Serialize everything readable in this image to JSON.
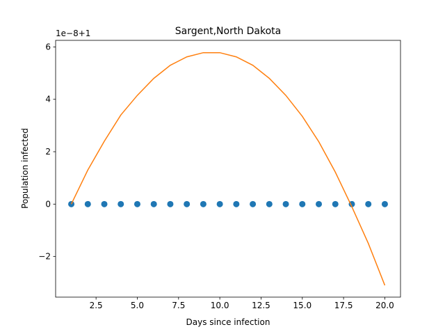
{
  "chart_data": {
    "type": "scatter",
    "title": "Sargent,North Dakota",
    "xlabel": "Days since infection",
    "ylabel": "Population infected",
    "offset_text": "1e−8+1",
    "xlim": [
      0.05,
      20.95
    ],
    "ylim": [
      -3.55,
      6.25
    ],
    "xticks": [
      2.5,
      5.0,
      7.5,
      10.0,
      12.5,
      15.0,
      17.5,
      20.0
    ],
    "xtick_labels": [
      "2.5",
      "5.0",
      "7.5",
      "10.0",
      "12.5",
      "15.0",
      "17.5",
      "20.0"
    ],
    "yticks": [
      -2,
      0,
      2,
      4,
      6
    ],
    "ytick_labels": [
      "−2",
      "0",
      "2",
      "4",
      "6"
    ],
    "grid": false,
    "series": [
      {
        "kind": "scatter",
        "color": "#1f77b4",
        "x": [
          1,
          2,
          3,
          4,
          5,
          6,
          7,
          8,
          9,
          10,
          11,
          12,
          13,
          14,
          15,
          16,
          17,
          18,
          19,
          20
        ],
        "y": [
          0,
          0,
          0,
          0,
          0,
          0,
          0,
          0,
          0,
          0,
          0,
          0,
          0,
          0,
          0,
          0,
          0,
          0,
          0,
          0
        ]
      },
      {
        "kind": "line",
        "color": "#ff7f0e",
        "x": [
          1,
          2,
          3,
          4,
          5,
          6,
          7,
          8,
          9,
          10,
          11,
          12,
          13,
          14,
          15,
          16,
          17,
          18,
          19,
          20
        ],
        "y": [
          0.0,
          1.3,
          2.4,
          3.4,
          4.15,
          4.8,
          5.3,
          5.62,
          5.78,
          5.78,
          5.62,
          5.3,
          4.8,
          4.15,
          3.35,
          2.38,
          1.22,
          -0.1,
          -1.5,
          -3.1
        ]
      }
    ]
  }
}
